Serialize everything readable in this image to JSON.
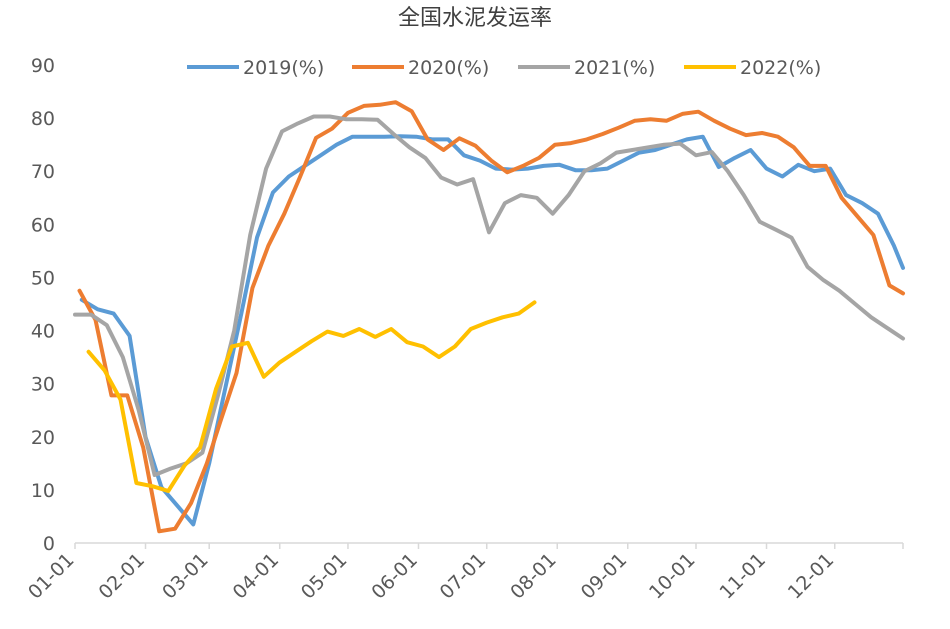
{
  "chart_data": {
    "type": "line",
    "title": "全国水泥发运率",
    "xlabel": "",
    "ylabel": "",
    "ylim": [
      0,
      90
    ],
    "yticks": [
      0,
      10,
      20,
      30,
      40,
      50,
      60,
      70,
      80,
      90
    ],
    "xlim": [
      "01-01",
      "12-31"
    ],
    "xticks": [
      "01-01",
      "02-01",
      "03-01",
      "04-01",
      "05-01",
      "06-01",
      "07-01",
      "08-01",
      "09-01",
      "10-01",
      "11-01",
      "12-01"
    ],
    "grid": false,
    "legend_position": "top",
    "series": [
      {
        "name": "2019(%)",
        "color": "#5B9BD5",
        "points": [
          [
            "01-04",
            45.8
          ],
          [
            "01-11",
            44.0
          ],
          [
            "01-18",
            43.2
          ],
          [
            "01-25",
            39.0
          ],
          [
            "02-01",
            20.0
          ],
          [
            "02-08",
            10.5
          ],
          [
            "02-15",
            7.0
          ],
          [
            "02-22",
            3.5
          ],
          [
            "03-01",
            15.0
          ],
          [
            "03-08",
            29.0
          ],
          [
            "03-15",
            43.0
          ],
          [
            "03-22",
            57.5
          ],
          [
            "03-29",
            66.0
          ],
          [
            "04-05",
            69.0
          ],
          [
            "04-12",
            71.0
          ],
          [
            "04-19",
            73.0
          ],
          [
            "04-26",
            75.0
          ],
          [
            "05-03",
            76.5
          ],
          [
            "05-10",
            76.5
          ],
          [
            "05-17",
            76.5
          ],
          [
            "05-24",
            76.6
          ],
          [
            "05-31",
            76.5
          ],
          [
            "06-07",
            76.0
          ],
          [
            "06-14",
            76.0
          ],
          [
            "06-21",
            73.0
          ],
          [
            "06-28",
            72.0
          ],
          [
            "07-05",
            70.5
          ],
          [
            "07-12",
            70.3
          ],
          [
            "07-19",
            70.5
          ],
          [
            "07-26",
            71.0
          ],
          [
            "08-02",
            71.2
          ],
          [
            "08-09",
            70.2
          ],
          [
            "08-16",
            70.2
          ],
          [
            "08-23",
            70.5
          ],
          [
            "08-30",
            72.0
          ],
          [
            "09-06",
            73.5
          ],
          [
            "09-13",
            74.0
          ],
          [
            "09-20",
            75.0
          ],
          [
            "09-27",
            76.0
          ],
          [
            "10-04",
            76.5
          ],
          [
            "10-11",
            70.8
          ],
          [
            "10-18",
            72.5
          ],
          [
            "10-25",
            74.0
          ],
          [
            "11-01",
            70.5
          ],
          [
            "11-08",
            69.0
          ],
          [
            "11-15",
            71.2
          ],
          [
            "11-22",
            70.0
          ],
          [
            "11-29",
            70.5
          ],
          [
            "12-06",
            65.5
          ],
          [
            "12-13",
            64.0
          ],
          [
            "12-20",
            62.0
          ],
          [
            "12-27",
            56.0
          ],
          [
            "12-31",
            51.8
          ]
        ]
      },
      {
        "name": "2020(%)",
        "color": "#ED7D31",
        "points": [
          [
            "01-03",
            47.5
          ],
          [
            "01-10",
            42.0
          ],
          [
            "01-17",
            27.8
          ],
          [
            "01-24",
            27.8
          ],
          [
            "01-31",
            18.0
          ],
          [
            "02-07",
            2.2
          ],
          [
            "02-14",
            2.7
          ],
          [
            "02-21",
            7.5
          ],
          [
            "02-28",
            15.0
          ],
          [
            "03-06",
            23.0
          ],
          [
            "03-13",
            32.0
          ],
          [
            "03-20",
            48.0
          ],
          [
            "03-27",
            56.0
          ],
          [
            "04-03",
            62.0
          ],
          [
            "04-10",
            69.0
          ],
          [
            "04-17",
            76.3
          ],
          [
            "04-24",
            78.0
          ],
          [
            "05-01",
            81.0
          ],
          [
            "05-08",
            82.3
          ],
          [
            "05-15",
            82.5
          ],
          [
            "05-22",
            83.0
          ],
          [
            "05-29",
            81.3
          ],
          [
            "06-05",
            76.0
          ],
          [
            "06-12",
            74.0
          ],
          [
            "06-19",
            76.2
          ],
          [
            "06-26",
            74.8
          ],
          [
            "07-03",
            72.0
          ],
          [
            "07-10",
            69.8
          ],
          [
            "07-17",
            71.0
          ],
          [
            "07-24",
            72.5
          ],
          [
            "07-31",
            75.0
          ],
          [
            "08-07",
            75.3
          ],
          [
            "08-14",
            76.0
          ],
          [
            "08-21",
            77.0
          ],
          [
            "08-28",
            78.2
          ],
          [
            "09-04",
            79.5
          ],
          [
            "09-11",
            79.8
          ],
          [
            "09-18",
            79.5
          ],
          [
            "09-25",
            80.8
          ],
          [
            "10-02",
            81.2
          ],
          [
            "10-09",
            79.5
          ],
          [
            "10-16",
            78.0
          ],
          [
            "10-23",
            76.8
          ],
          [
            "10-30",
            77.2
          ],
          [
            "11-06",
            76.5
          ],
          [
            "11-13",
            74.5
          ],
          [
            "11-20",
            71.0
          ],
          [
            "11-27",
            71.0
          ],
          [
            "12-04",
            65.0
          ],
          [
            "12-11",
            61.5
          ],
          [
            "12-18",
            58.0
          ],
          [
            "12-25",
            48.5
          ],
          [
            "12-31",
            47.0
          ]
        ]
      },
      {
        "name": "2021(%)",
        "color": "#A5A5A5",
        "points": [
          [
            "01-01",
            43.0
          ],
          [
            "01-08",
            43.0
          ],
          [
            "01-15",
            41.0
          ],
          [
            "01-22",
            35.0
          ],
          [
            "01-29",
            25.0
          ],
          [
            "02-05",
            12.8
          ],
          [
            "02-12",
            14.0
          ],
          [
            "02-19",
            15.0
          ],
          [
            "02-26",
            17.0
          ],
          [
            "03-05",
            28.0
          ],
          [
            "03-12",
            40.0
          ],
          [
            "03-19",
            58.0
          ],
          [
            "03-26",
            70.5
          ],
          [
            "04-02",
            77.5
          ],
          [
            "04-09",
            79.0
          ],
          [
            "04-16",
            80.3
          ],
          [
            "04-23",
            80.3
          ],
          [
            "04-30",
            79.8
          ],
          [
            "05-07",
            79.8
          ],
          [
            "05-14",
            79.7
          ],
          [
            "05-21",
            77.0
          ],
          [
            "05-28",
            74.5
          ],
          [
            "06-04",
            72.5
          ],
          [
            "06-11",
            68.8
          ],
          [
            "06-18",
            67.5
          ],
          [
            "06-25",
            68.5
          ],
          [
            "07-02",
            58.5
          ],
          [
            "07-09",
            64.0
          ],
          [
            "07-16",
            65.5
          ],
          [
            "07-23",
            65.0
          ],
          [
            "07-30",
            62.0
          ],
          [
            "08-06",
            65.5
          ],
          [
            "08-13",
            70.0
          ],
          [
            "08-20",
            71.5
          ],
          [
            "08-27",
            73.5
          ],
          [
            "09-03",
            74.0
          ],
          [
            "09-10",
            74.5
          ],
          [
            "09-17",
            75.0
          ],
          [
            "09-24",
            75.2
          ],
          [
            "10-01",
            73.0
          ],
          [
            "10-08",
            73.6
          ],
          [
            "10-15",
            70.0
          ],
          [
            "10-22",
            65.5
          ],
          [
            "10-29",
            60.5
          ],
          [
            "11-05",
            59.0
          ],
          [
            "11-12",
            57.5
          ],
          [
            "11-19",
            52.0
          ],
          [
            "11-26",
            49.5
          ],
          [
            "12-03",
            47.5
          ],
          [
            "12-10",
            45.0
          ],
          [
            "12-17",
            42.5
          ],
          [
            "12-24",
            40.5
          ],
          [
            "12-31",
            38.5
          ]
        ]
      },
      {
        "name": "2022(%)",
        "color": "#FFC000",
        "points": [
          [
            "01-07",
            36.0
          ],
          [
            "01-14",
            32.5
          ],
          [
            "01-21",
            27.0
          ],
          [
            "01-28",
            11.3
          ],
          [
            "02-04",
            10.7
          ],
          [
            "02-11",
            9.8
          ],
          [
            "02-18",
            14.5
          ],
          [
            "02-25",
            18.0
          ],
          [
            "03-04",
            29.0
          ],
          [
            "03-11",
            37.0
          ],
          [
            "03-18",
            37.7
          ],
          [
            "03-25",
            31.3
          ],
          [
            "04-01",
            34.0
          ],
          [
            "04-08",
            36.0
          ],
          [
            "04-15",
            38.0
          ],
          [
            "04-22",
            39.8
          ],
          [
            "04-29",
            39.0
          ],
          [
            "05-06",
            40.3
          ],
          [
            "05-13",
            38.8
          ],
          [
            "05-20",
            40.3
          ],
          [
            "05-27",
            37.8
          ],
          [
            "06-03",
            37.0
          ],
          [
            "06-10",
            35.0
          ],
          [
            "06-17",
            37.0
          ],
          [
            "06-24",
            40.3
          ],
          [
            "07-01",
            41.5
          ],
          [
            "07-08",
            42.5
          ],
          [
            "07-15",
            43.2
          ],
          [
            "07-22",
            45.3
          ]
        ]
      }
    ]
  }
}
